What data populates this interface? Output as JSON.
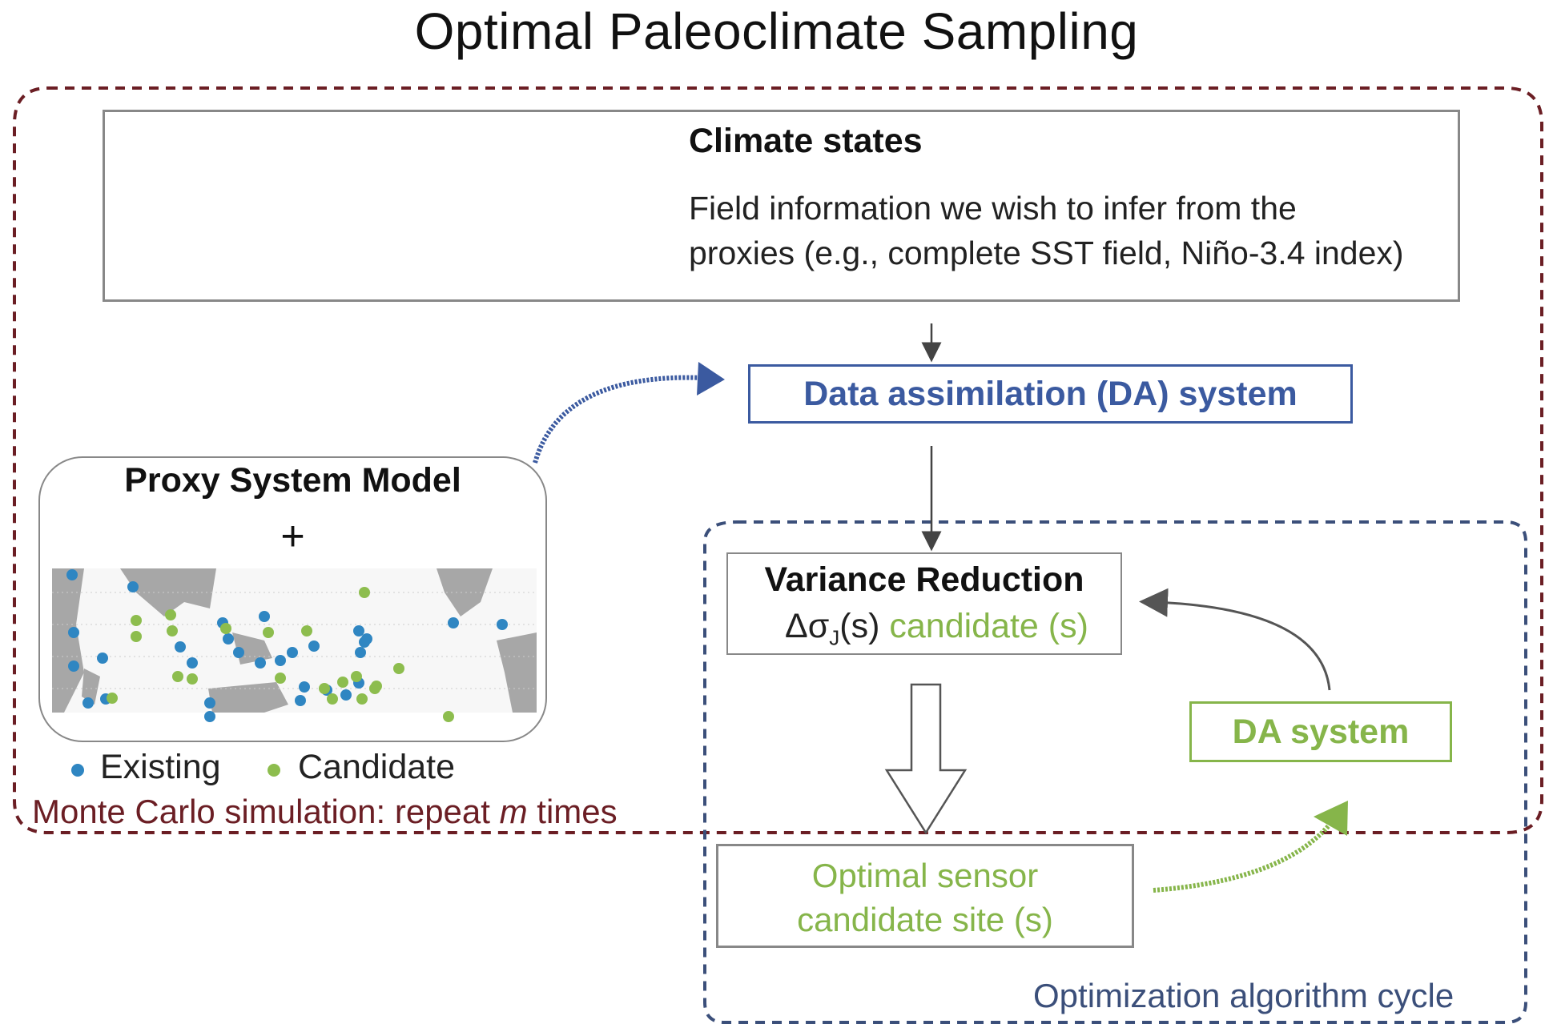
{
  "title": "Optimal Paleoclimate Sampling",
  "climate_states": {
    "title": "Climate states",
    "description_line1": "Field information we wish to infer from the",
    "description_line2": "proxies (e.g., complete SST field,  Niño-3.4 index)"
  },
  "da_system": {
    "label": "Data assimilation (DA) system"
  },
  "psm": {
    "title": "Proxy System Model",
    "plus": "+"
  },
  "legend": {
    "existing": "Existing",
    "candidate": "Candidate"
  },
  "monte_carlo": {
    "label_prefix": "Monte Carlo simulation: repeat ",
    "label_var": "m",
    "label_suffix": " times"
  },
  "variance_reduction": {
    "title": "Variance Reduction",
    "symbol": "Δσ",
    "subscript": "J",
    "symbol_suffix": "(s) ",
    "candidate": "candidate (s)"
  },
  "da_system_small": {
    "label": "DA system"
  },
  "optimal_sensor": {
    "line1": "Optimal sensor",
    "line2": "candidate site (s)"
  },
  "cycle": {
    "label": "Optimization algorithm cycle"
  },
  "colors": {
    "existing": "#2f86c2",
    "candidate": "#8dbd4e",
    "monte_carlo": "#6b1e24",
    "cycle": "#3b4f7a",
    "da_blue": "#3b5aa0",
    "green": "#86b54a"
  }
}
